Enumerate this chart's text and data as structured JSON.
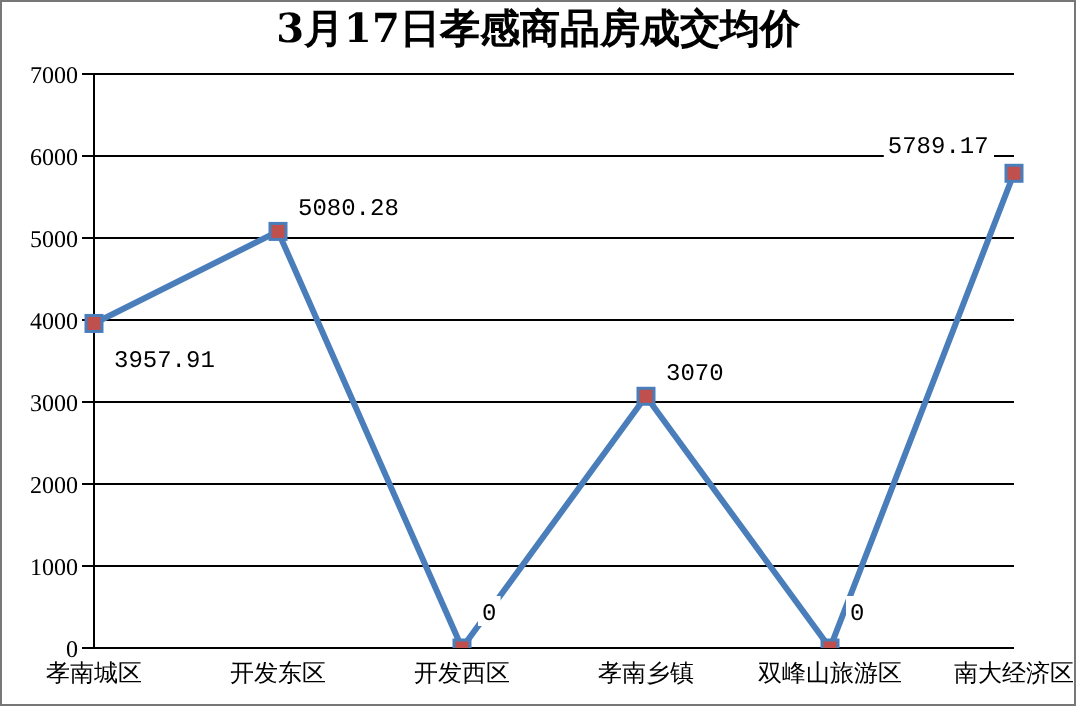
{
  "chart_data": {
    "type": "line",
    "title": "3月17日孝感商品房成交均价",
    "categories": [
      "孝南城区",
      "开发东区",
      "开发西区",
      "孝南乡镇",
      "双峰山旅游区",
      "南大经济区"
    ],
    "series": [
      {
        "color": "#4a7ebb",
        "values": [
          3957.91,
          5080.28,
          0,
          3070,
          0,
          5789.17
        ]
      }
    ],
    "ylim": [
      0,
      7000
    ],
    "yticks": [
      0,
      1000,
      2000,
      3000,
      4000,
      5000,
      6000,
      7000
    ],
    "grid": "y",
    "legend": false,
    "marker": "square",
    "line_style": "solid",
    "data_labels": true
  }
}
